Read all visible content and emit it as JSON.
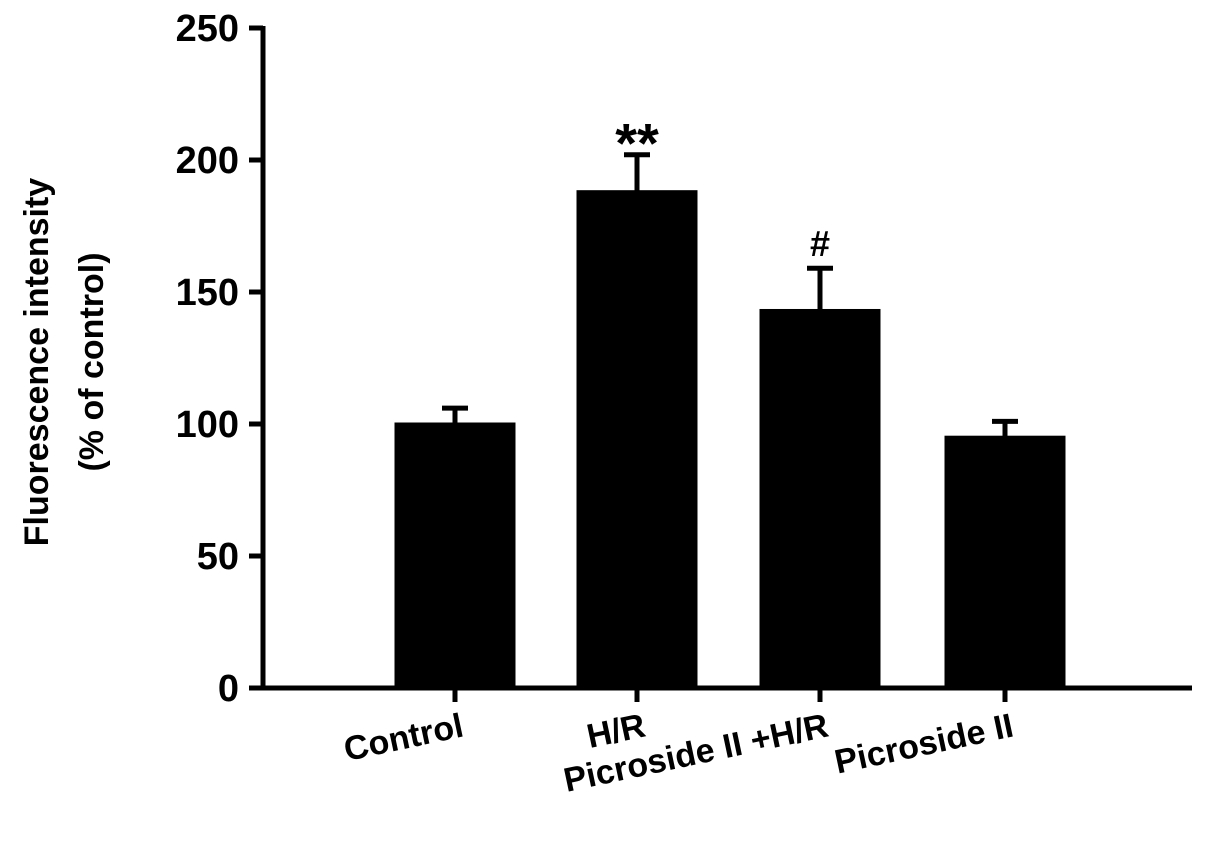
{
  "chart_data": {
    "type": "bar",
    "categories": [
      "Control",
      "H/R",
      "Picroside II +H/R",
      "Picroside II"
    ],
    "values": [
      100,
      188,
      143,
      95
    ],
    "errors": [
      6,
      14,
      16,
      6
    ],
    "annotations": [
      "",
      "**",
      "#",
      ""
    ],
    "ylabel_line1": "Fluorescence intensity",
    "ylabel_line2": "(% of control)",
    "ylim": [
      0,
      250
    ],
    "yticks": [
      0,
      50,
      100,
      150,
      200,
      250
    ],
    "bar_color": "#000000",
    "grid": false,
    "legend": "none"
  }
}
